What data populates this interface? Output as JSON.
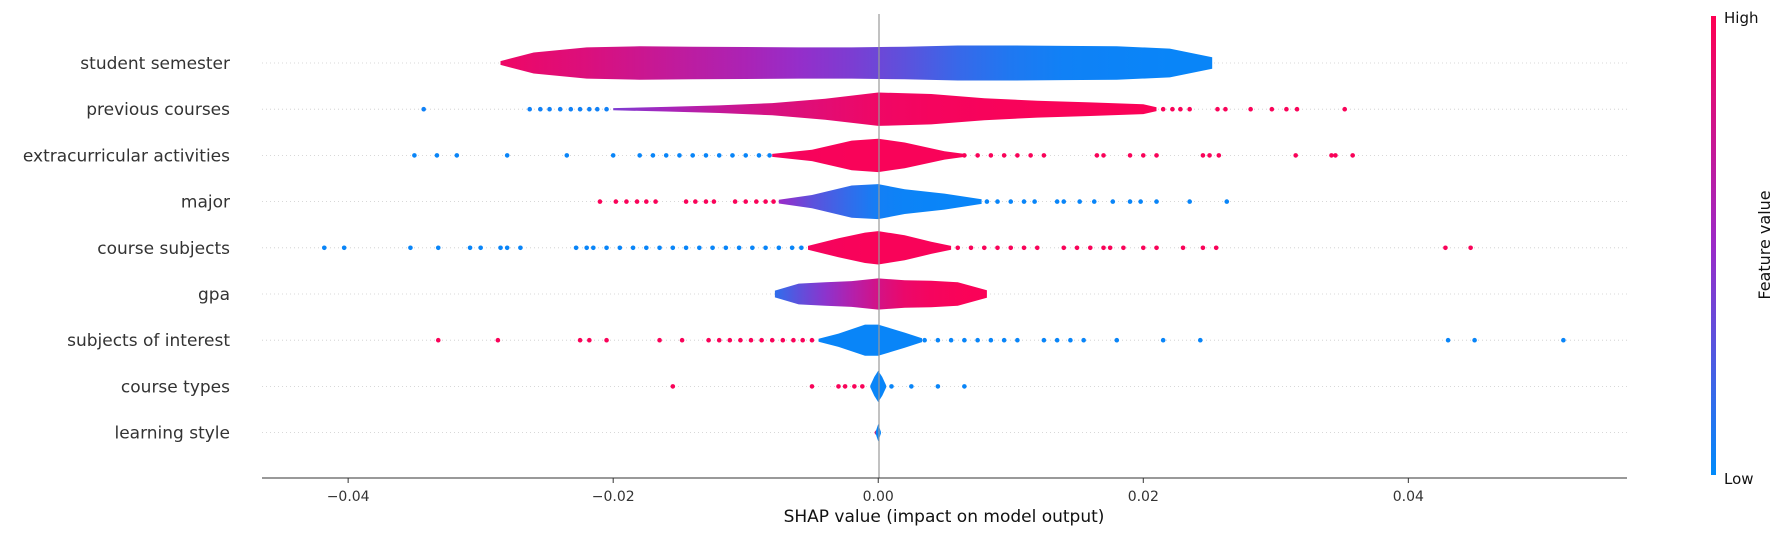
{
  "chart_data": {
    "type": "scatter",
    "subtype": "shap-violin-summary",
    "xlabel": "SHAP value (impact on model output)",
    "xlim": [
      -0.0465,
      0.0565
    ],
    "xticks": [
      -0.04,
      -0.02,
      0.0,
      0.02,
      0.04
    ],
    "xtick_labels": [
      "−0.04",
      "−0.02",
      "0.00",
      "0.02",
      "0.04"
    ],
    "colorbar": {
      "title": "Feature value",
      "high_label": "High",
      "low_label": "Low",
      "low_color": "#008bfb",
      "high_color": "#ff0052"
    },
    "features": [
      {
        "name": "student semester",
        "violin": [
          [
            -0.0285,
            0.1,
            0.92
          ],
          [
            -0.026,
            0.55,
            0.88
          ],
          [
            -0.022,
            0.82,
            0.82
          ],
          [
            -0.018,
            0.88,
            0.74
          ],
          [
            -0.014,
            0.86,
            0.66
          ],
          [
            -0.01,
            0.84,
            0.58
          ],
          [
            -0.006,
            0.82,
            0.48
          ],
          [
            -0.002,
            0.82,
            0.4
          ],
          [
            0.002,
            0.86,
            0.3
          ],
          [
            0.006,
            0.92,
            0.18
          ],
          [
            0.01,
            0.92,
            0.1
          ],
          [
            0.014,
            0.9,
            0.05
          ],
          [
            0.018,
            0.88,
            0.04
          ],
          [
            0.022,
            0.76,
            0.03
          ],
          [
            0.0252,
            0.3,
            0.03
          ]
        ],
        "points": []
      },
      {
        "name": "previous courses",
        "violin": [
          [
            -0.02,
            0.06,
            0.4
          ],
          [
            -0.016,
            0.12,
            0.55
          ],
          [
            -0.012,
            0.2,
            0.7
          ],
          [
            -0.008,
            0.32,
            0.8
          ],
          [
            -0.004,
            0.55,
            0.86
          ],
          [
            0.0,
            0.88,
            0.92
          ],
          [
            0.004,
            0.8,
            0.95
          ],
          [
            0.008,
            0.58,
            0.96
          ],
          [
            0.012,
            0.44,
            0.97
          ],
          [
            0.016,
            0.36,
            0.97
          ],
          [
            0.02,
            0.26,
            0.98
          ],
          [
            0.021,
            0.1,
            0.98
          ]
        ],
        "points": [
          [
            -0.0343,
            0.05
          ],
          [
            -0.0263,
            0.05
          ],
          [
            -0.0255,
            0.05
          ],
          [
            -0.0248,
            0.05
          ],
          [
            -0.024,
            0.05
          ],
          [
            -0.0232,
            0.05
          ],
          [
            -0.0225,
            0.05
          ],
          [
            -0.0218,
            0.05
          ],
          [
            -0.0212,
            0.05
          ],
          [
            -0.0205,
            0.05
          ],
          [
            0.0215,
            0.97
          ],
          [
            0.0222,
            0.97
          ],
          [
            0.0228,
            0.97
          ],
          [
            0.0235,
            0.97
          ],
          [
            0.0256,
            0.97
          ],
          [
            0.0262,
            0.97
          ],
          [
            0.0281,
            0.97
          ],
          [
            0.0297,
            0.97
          ],
          [
            0.0308,
            0.97
          ],
          [
            0.0316,
            0.97
          ],
          [
            0.0352,
            0.97
          ]
        ]
      },
      {
        "name": "extracurricular activities",
        "violin": [
          [
            -0.008,
            0.08,
            0.95
          ],
          [
            -0.005,
            0.3,
            0.96
          ],
          [
            -0.002,
            0.78,
            0.97
          ],
          [
            0.0,
            0.88,
            0.97
          ],
          [
            0.002,
            0.68,
            0.97
          ],
          [
            0.005,
            0.22,
            0.97
          ],
          [
            0.0065,
            0.08,
            0.97
          ]
        ],
        "points": [
          [
            -0.035,
            0.03
          ],
          [
            -0.0333,
            0.03
          ],
          [
            -0.0318,
            0.03
          ],
          [
            -0.028,
            0.03
          ],
          [
            -0.0235,
            0.03
          ],
          [
            -0.02,
            0.03
          ],
          [
            -0.018,
            0.03
          ],
          [
            -0.017,
            0.03
          ],
          [
            -0.016,
            0.03
          ],
          [
            -0.015,
            0.03
          ],
          [
            -0.014,
            0.03
          ],
          [
            -0.013,
            0.03
          ],
          [
            -0.012,
            0.03
          ],
          [
            -0.011,
            0.03
          ],
          [
            -0.01,
            0.03
          ],
          [
            -0.009,
            0.03
          ],
          [
            -0.0082,
            0.03
          ],
          [
            0.0065,
            0.97
          ],
          [
            0.0075,
            0.97
          ],
          [
            0.0085,
            0.97
          ],
          [
            0.0095,
            0.97
          ],
          [
            0.0105,
            0.97
          ],
          [
            0.0115,
            0.97
          ],
          [
            0.0125,
            0.97
          ],
          [
            0.0165,
            0.97
          ],
          [
            0.017,
            0.97
          ],
          [
            0.019,
            0.97
          ],
          [
            0.02,
            0.97
          ],
          [
            0.021,
            0.97
          ],
          [
            0.0245,
            0.97
          ],
          [
            0.025,
            0.97
          ],
          [
            0.0257,
            0.97
          ],
          [
            0.0315,
            0.97
          ],
          [
            0.0342,
            0.97
          ],
          [
            0.0345,
            0.97
          ],
          [
            0.0358,
            0.97
          ]
        ]
      },
      {
        "name": "major",
        "violin": [
          [
            -0.0075,
            0.1,
            0.5
          ],
          [
            -0.005,
            0.35,
            0.3
          ],
          [
            -0.002,
            0.85,
            0.15
          ],
          [
            0.0,
            0.92,
            0.06
          ],
          [
            0.002,
            0.65,
            0.04
          ],
          [
            0.005,
            0.42,
            0.03
          ],
          [
            0.0078,
            0.12,
            0.03
          ]
        ],
        "points": [
          [
            -0.021,
            0.97
          ],
          [
            -0.0198,
            0.97
          ],
          [
            -0.019,
            0.97
          ],
          [
            -0.0182,
            0.97
          ],
          [
            -0.0175,
            0.97
          ],
          [
            -0.0168,
            0.97
          ],
          [
            -0.0145,
            0.97
          ],
          [
            -0.0138,
            0.97
          ],
          [
            -0.013,
            0.97
          ],
          [
            -0.0124,
            0.97
          ],
          [
            -0.0108,
            0.97
          ],
          [
            -0.01,
            0.97
          ],
          [
            -0.0092,
            0.97
          ],
          [
            -0.0085,
            0.97
          ],
          [
            -0.0079,
            0.97
          ],
          [
            0.0082,
            0.03
          ],
          [
            0.009,
            0.03
          ],
          [
            0.01,
            0.03
          ],
          [
            0.011,
            0.03
          ],
          [
            0.0118,
            0.03
          ],
          [
            0.0135,
            0.03
          ],
          [
            0.014,
            0.03
          ],
          [
            0.0152,
            0.03
          ],
          [
            0.0163,
            0.03
          ],
          [
            0.0177,
            0.03
          ],
          [
            0.019,
            0.03
          ],
          [
            0.0198,
            0.03
          ],
          [
            0.021,
            0.03
          ],
          [
            0.0235,
            0.03
          ],
          [
            0.0263,
            0.03
          ]
        ]
      },
      {
        "name": "course subjects",
        "violin": [
          [
            -0.0053,
            0.1,
            0.95
          ],
          [
            -0.003,
            0.5,
            0.96
          ],
          [
            -0.001,
            0.8,
            0.97
          ],
          [
            0.0,
            0.88,
            0.97
          ],
          [
            0.002,
            0.66,
            0.97
          ],
          [
            0.004,
            0.32,
            0.97
          ],
          [
            0.0055,
            0.1,
            0.97
          ]
        ],
        "points": [
          [
            -0.0418,
            0.03
          ],
          [
            -0.0403,
            0.03
          ],
          [
            -0.0353,
            0.03
          ],
          [
            -0.0332,
            0.03
          ],
          [
            -0.0308,
            0.03
          ],
          [
            -0.03,
            0.03
          ],
          [
            -0.0285,
            0.03
          ],
          [
            -0.028,
            0.03
          ],
          [
            -0.027,
            0.03
          ],
          [
            -0.0228,
            0.03
          ],
          [
            -0.022,
            0.03
          ],
          [
            -0.0215,
            0.03
          ],
          [
            -0.0205,
            0.03
          ],
          [
            -0.0195,
            0.03
          ],
          [
            -0.0185,
            0.03
          ],
          [
            -0.0175,
            0.03
          ],
          [
            -0.0165,
            0.03
          ],
          [
            -0.0155,
            0.03
          ],
          [
            -0.0145,
            0.03
          ],
          [
            -0.0135,
            0.03
          ],
          [
            -0.0125,
            0.03
          ],
          [
            -0.0115,
            0.03
          ],
          [
            -0.0105,
            0.03
          ],
          [
            -0.0095,
            0.03
          ],
          [
            -0.0085,
            0.03
          ],
          [
            -0.0075,
            0.03
          ],
          [
            -0.0065,
            0.03
          ],
          [
            -0.0058,
            0.03
          ],
          [
            0.006,
            0.97
          ],
          [
            0.007,
            0.97
          ],
          [
            0.008,
            0.97
          ],
          [
            0.009,
            0.97
          ],
          [
            0.01,
            0.97
          ],
          [
            0.011,
            0.97
          ],
          [
            0.012,
            0.97
          ],
          [
            0.014,
            0.97
          ],
          [
            0.015,
            0.97
          ],
          [
            0.016,
            0.97
          ],
          [
            0.017,
            0.97
          ],
          [
            0.0175,
            0.97
          ],
          [
            0.0185,
            0.97
          ],
          [
            0.02,
            0.97
          ],
          [
            0.021,
            0.97
          ],
          [
            0.023,
            0.97
          ],
          [
            0.0245,
            0.97
          ],
          [
            0.0255,
            0.97
          ],
          [
            0.0428,
            0.97
          ],
          [
            0.0447,
            0.97
          ]
        ]
      },
      {
        "name": "gpa",
        "violin": [
          [
            -0.0078,
            0.18,
            0.15
          ],
          [
            -0.006,
            0.55,
            0.3
          ],
          [
            -0.004,
            0.62,
            0.45
          ],
          [
            -0.002,
            0.68,
            0.62
          ],
          [
            0.0,
            0.82,
            0.78
          ],
          [
            0.002,
            0.72,
            0.9
          ],
          [
            0.004,
            0.7,
            0.95
          ],
          [
            0.006,
            0.62,
            0.97
          ],
          [
            0.0082,
            0.2,
            0.98
          ]
        ],
        "points": []
      },
      {
        "name": "subjects of interest",
        "violin": [
          [
            -0.0045,
            0.08,
            0.03
          ],
          [
            -0.003,
            0.35,
            0.03
          ],
          [
            -0.001,
            0.82,
            0.03
          ],
          [
            0.0,
            0.82,
            0.03
          ],
          [
            0.002,
            0.4,
            0.03
          ],
          [
            0.0033,
            0.1,
            0.03
          ]
        ],
        "points": [
          [
            -0.0332,
            0.97
          ],
          [
            -0.0287,
            0.97
          ],
          [
            -0.0225,
            0.97
          ],
          [
            -0.0218,
            0.97
          ],
          [
            -0.0205,
            0.97
          ],
          [
            -0.0165,
            0.97
          ],
          [
            -0.0148,
            0.97
          ],
          [
            -0.0128,
            0.97
          ],
          [
            -0.012,
            0.97
          ],
          [
            -0.0112,
            0.97
          ],
          [
            -0.0104,
            0.97
          ],
          [
            -0.0096,
            0.97
          ],
          [
            -0.0088,
            0.97
          ],
          [
            -0.008,
            0.97
          ],
          [
            -0.0072,
            0.97
          ],
          [
            -0.0064,
            0.97
          ],
          [
            -0.0057,
            0.97
          ],
          [
            -0.005,
            0.97
          ],
          [
            0.0035,
            0.03
          ],
          [
            0.0045,
            0.03
          ],
          [
            0.0055,
            0.03
          ],
          [
            0.0065,
            0.03
          ],
          [
            0.0075,
            0.03
          ],
          [
            0.0085,
            0.03
          ],
          [
            0.0095,
            0.03
          ],
          [
            0.0105,
            0.03
          ],
          [
            0.0125,
            0.03
          ],
          [
            0.0135,
            0.03
          ],
          [
            0.0145,
            0.03
          ],
          [
            0.0155,
            0.03
          ],
          [
            0.018,
            0.03
          ],
          [
            0.0215,
            0.03
          ],
          [
            0.0243,
            0.03
          ],
          [
            0.043,
            0.03
          ],
          [
            0.045,
            0.03
          ],
          [
            0.0517,
            0.03
          ]
        ]
      },
      {
        "name": "course types",
        "violin": [
          [
            -0.0006,
            0.05,
            0.03
          ],
          [
            -0.0003,
            0.5,
            0.03
          ],
          [
            0.0,
            0.82,
            0.03
          ],
          [
            0.0003,
            0.5,
            0.03
          ],
          [
            0.0006,
            0.05,
            0.03
          ]
        ],
        "points": [
          [
            -0.0155,
            0.97
          ],
          [
            -0.005,
            0.97
          ],
          [
            -0.003,
            0.97
          ],
          [
            -0.0025,
            0.97
          ],
          [
            -0.0018,
            0.97
          ],
          [
            -0.0012,
            0.97
          ],
          [
            0.001,
            0.03
          ],
          [
            0.0025,
            0.03
          ],
          [
            0.0045,
            0.03
          ],
          [
            0.0065,
            0.03
          ]
        ]
      },
      {
        "name": "learning style",
        "violin": [
          [
            -0.0002,
            0.05,
            0.03
          ],
          [
            0.0,
            0.45,
            0.03
          ],
          [
            0.0002,
            0.05,
            0.03
          ]
        ],
        "points": [
          [
            -0.0001,
            0.97
          ]
        ]
      }
    ]
  }
}
